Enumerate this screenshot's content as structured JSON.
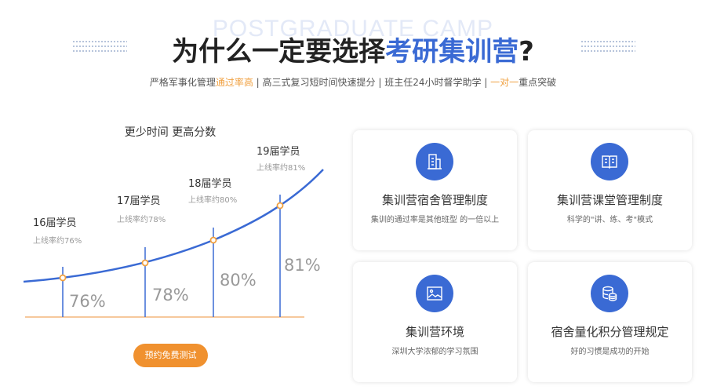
{
  "header": {
    "bg_word": "POSTGRADUATE CAMP",
    "title_main": "为什么一定要选择",
    "title_highlight": "考研集训营",
    "title_end": "?",
    "subtitle": [
      {
        "text": "严格军事化管理",
        "accent": false
      },
      {
        "text": "通过率高",
        "accent": true
      },
      {
        "text": " | 高三式复习短时间快速提分 | 班主任24小时督学助学 | ",
        "accent": false
      },
      {
        "text": "一对一",
        "accent": true
      },
      {
        "text": "重点突破",
        "accent": false
      }
    ]
  },
  "colors": {
    "accent_blue": "#3a6ad4",
    "accent_orange": "#f0912f"
  },
  "chart_data": {
    "type": "line",
    "title": "更少时间 更高分数",
    "categories": [
      "16届学员",
      "17届学员",
      "18届学员",
      "19届学员"
    ],
    "values": [
      76,
      78,
      80,
      81
    ],
    "labels": [
      "上线率约76%",
      "上线率约78%",
      "上线率约80%",
      "上线率约81%"
    ],
    "value_labels": [
      "76%",
      "78%",
      "80%",
      "81%"
    ]
  },
  "cta_button": "预约免费测试",
  "cards": [
    {
      "icon": "building-icon",
      "title": "集训营宿舍管理制度",
      "desc": "集训的通过率是其他班型 的一倍以上"
    },
    {
      "icon": "book-icon",
      "title": "集训营课堂管理制度",
      "desc": "科学的\"讲、练、考\"模式"
    },
    {
      "icon": "image-icon",
      "title": "集训营环境",
      "desc": "深圳大学浓郁的学习氛围"
    },
    {
      "icon": "database-icon",
      "title": "宿舍量化积分管理规定",
      "desc": "好的习惯是成功的开始"
    }
  ]
}
